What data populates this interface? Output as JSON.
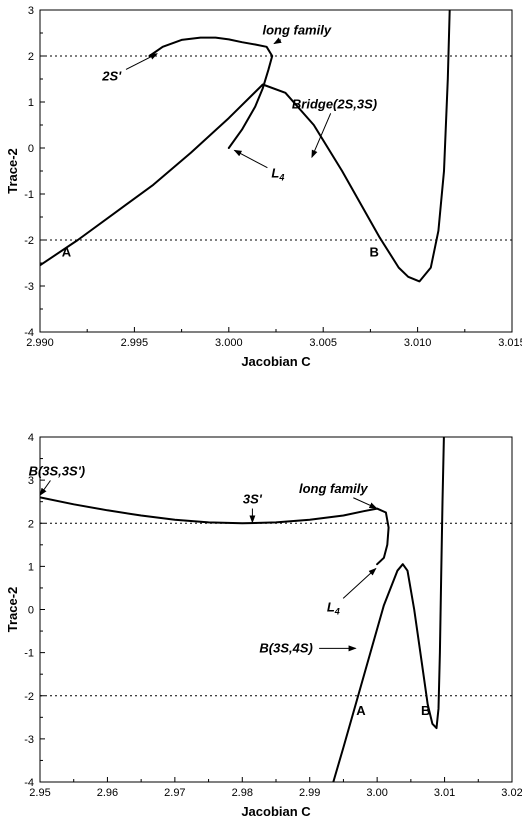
{
  "chart_data": [
    {
      "type": "line",
      "xlabel": "Jacobian C",
      "ylabel": "Trace-2",
      "xlim": [
        2.99,
        3.015
      ],
      "ylim": [
        -4,
        3
      ],
      "xticks": [
        "2.990",
        "2.995",
        "3.000",
        "3.005",
        "3.010",
        "3.015"
      ],
      "yticks": [
        "-4",
        "-3",
        "-2",
        "-1",
        "0",
        "1",
        "2",
        "3"
      ],
      "reference_lines_y": [
        2,
        -2
      ],
      "series": [
        {
          "x": [
            3.0,
            3.0007,
            3.0014,
            3.0018,
            3.0021,
            3.0023,
            3.002,
            3.0014,
            3.0007,
            3.0,
            2.9993,
            2.9985,
            2.9975,
            2.9965,
            2.9958
          ],
          "y": [
            0.0,
            0.4,
            0.9,
            1.3,
            1.7,
            2.0,
            2.2,
            2.25,
            2.3,
            2.36,
            2.4,
            2.4,
            2.35,
            2.2,
            2.0
          ]
        },
        {
          "x": [
            2.99,
            2.992,
            2.994,
            2.996,
            2.998,
            3.0,
            3.0018,
            3.003,
            3.0045,
            3.006,
            3.008,
            3.009,
            3.0095,
            3.0101,
            3.0107,
            3.0111,
            3.0114,
            3.0116,
            3.0117
          ],
          "y": [
            -2.55,
            -2.0,
            -1.4,
            -0.8,
            -0.1,
            0.65,
            1.38,
            1.2,
            0.5,
            -0.5,
            -1.95,
            -2.6,
            -2.8,
            -2.9,
            -2.6,
            -1.8,
            -0.5,
            1.5,
            3.0
          ]
        }
      ],
      "annotations": [
        {
          "text": "long family",
          "style": "italic",
          "x": 3.0036,
          "y": 2.55,
          "arrow_to_x": 3.0024,
          "arrow_to_y": 2.27
        },
        {
          "text": "2S'",
          "style": "italic",
          "x": 2.9938,
          "y": 1.55,
          "arrow_to_x": 2.9962,
          "arrow_to_y": 2.05
        },
        {
          "text": "L4",
          "style": "italic",
          "x": 3.0026,
          "y": -0.55,
          "arrow_to_x": 3.0003,
          "arrow_to_y": -0.05
        },
        {
          "text": "Bridge(2S,3S)",
          "style": "italic",
          "x": 3.0056,
          "y": 0.95,
          "arrow_to_x": 3.0044,
          "arrow_to_y": -0.2
        },
        {
          "text": "A",
          "style": "bold",
          "x": 2.9914,
          "y": -2.27,
          "arrow_to_x": null,
          "arrow_to_y": null
        },
        {
          "text": "B",
          "style": "bold",
          "x": 3.0077,
          "y": -2.27,
          "arrow_to_x": null,
          "arrow_to_y": null
        }
      ]
    },
    {
      "type": "line",
      "xlabel": "Jacobian C",
      "ylabel": "Trace-2",
      "xlim": [
        2.95,
        3.02
      ],
      "ylim": [
        -4,
        4
      ],
      "xticks": [
        "2.95",
        "2.96",
        "2.97",
        "2.98",
        "2.99",
        "3.00",
        "3.01",
        "3.02"
      ],
      "yticks": [
        "-4",
        "-3",
        "-2",
        "-1",
        "0",
        "1",
        "2",
        "3",
        "4"
      ],
      "reference_lines_y": [
        2,
        -2
      ],
      "series": [
        {
          "x": [
            2.95,
            2.955,
            2.96,
            2.965,
            2.97,
            2.975,
            2.98,
            2.985,
            2.99,
            2.995,
            2.998,
            3.0,
            3.0013,
            3.0017,
            3.0015,
            3.001,
            3.0
          ],
          "y": [
            2.6,
            2.44,
            2.3,
            2.18,
            2.08,
            2.02,
            2.0,
            2.02,
            2.08,
            2.18,
            2.28,
            2.34,
            2.25,
            1.9,
            1.5,
            1.2,
            1.05
          ]
        },
        {
          "x": [
            2.9935,
            2.995,
            2.997,
            2.999,
            3.001,
            3.003,
            3.0038,
            3.0045,
            3.0055,
            3.0066,
            3.0075,
            3.0082,
            3.0088,
            3.0091,
            3.0093,
            3.0095,
            3.0097,
            3.0099
          ],
          "y": [
            -4.0,
            -3.2,
            -2.1,
            -1.0,
            0.1,
            0.9,
            1.05,
            0.9,
            0.0,
            -1.2,
            -2.2,
            -2.65,
            -2.75,
            -2.3,
            -1.0,
            0.8,
            2.5,
            4.0
          ]
        }
      ],
      "annotations": [
        {
          "text": "B(3S,3S')",
          "style": "italic",
          "x": 2.9525,
          "y": 3.2,
          "arrow_to_x": 2.95,
          "arrow_to_y": 2.65
        },
        {
          "text": "3S'",
          "style": "italic",
          "x": 2.9815,
          "y": 2.55,
          "arrow_to_x": 2.9815,
          "arrow_to_y": 2.02
        },
        {
          "text": "long family",
          "style": "italic",
          "x": 2.9935,
          "y": 2.8,
          "arrow_to_x": 2.9999,
          "arrow_to_y": 2.35
        },
        {
          "text": "L4",
          "style": "italic",
          "x": 2.9935,
          "y": 0.05,
          "arrow_to_x": 2.9998,
          "arrow_to_y": 0.95
        },
        {
          "text": "B(3S,4S)",
          "style": "italic",
          "x": 2.9865,
          "y": -0.9,
          "arrow_to_x": 2.9968,
          "arrow_to_y": -0.9
        },
        {
          "text": "A",
          "style": "bold",
          "x": 2.9976,
          "y": -2.35,
          "arrow_to_x": null,
          "arrow_to_y": null
        },
        {
          "text": "B",
          "style": "bold",
          "x": 3.0072,
          "y": -2.35,
          "arrow_to_x": null,
          "arrow_to_y": null
        }
      ]
    }
  ]
}
